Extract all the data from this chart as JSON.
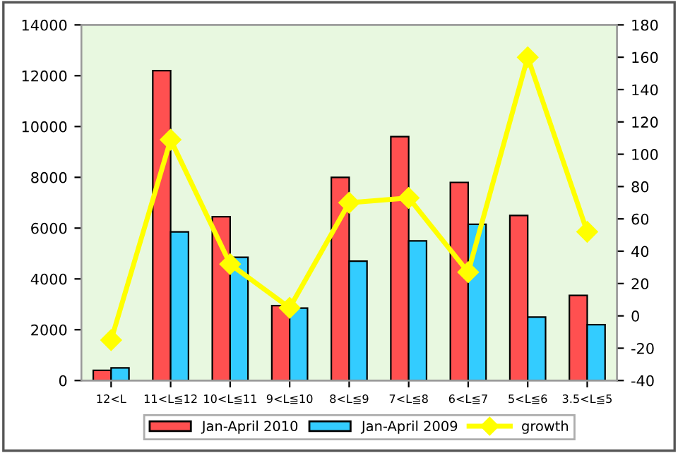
{
  "chart_data": {
    "type": "bar",
    "categories": [
      "12<L",
      "11<L≦12",
      "10<L≦11",
      "9<L≦10",
      "8<L≦9",
      "7<L≦8",
      "6<L≦7",
      "5<L≦6",
      "3.5<L≦5"
    ],
    "series": [
      {
        "name": "Jan-April 2010",
        "color": "#ff5050",
        "values": [
          400,
          12200,
          6450,
          2950,
          8000,
          9600,
          7800,
          6500,
          3350
        ]
      },
      {
        "name": "Jan-April 2009",
        "color": "#33ccff",
        "values": [
          500,
          5850,
          4850,
          2850,
          4700,
          5500,
          6150,
          2500,
          2200
        ]
      },
      {
        "name": "growth",
        "type": "line",
        "axis": "y2",
        "color": "#ffff00",
        "marker": "diamond",
        "values": [
          -15,
          109,
          32,
          5,
          70,
          73,
          27,
          160,
          52
        ]
      }
    ],
    "ylim": [
      0,
      14000
    ],
    "yticks": [
      0,
      2000,
      4000,
      6000,
      8000,
      10000,
      12000,
      14000
    ],
    "y2lim": [
      -40,
      180
    ],
    "y2ticks": [
      -40,
      -20,
      0,
      20,
      40,
      60,
      80,
      100,
      120,
      140,
      160,
      180
    ],
    "legend": "bottom",
    "grid": false
  }
}
